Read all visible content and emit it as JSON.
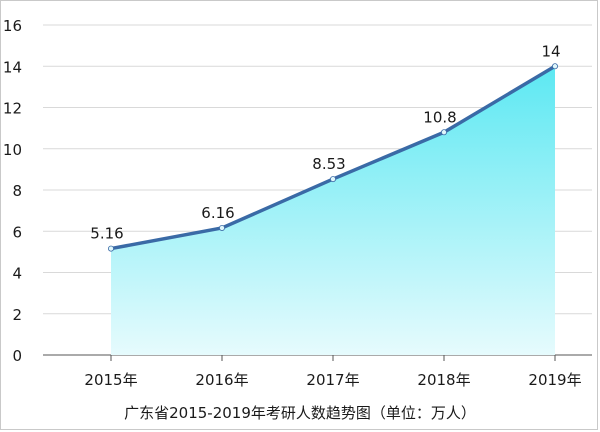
{
  "chart_data": {
    "type": "area",
    "title": "广东省2015-2019年考研人数趋势图（单位：万人）",
    "categories": [
      "2015年",
      "2016年",
      "2017年",
      "2018年",
      "2019年"
    ],
    "series": [
      {
        "values": [
          5.16,
          6.16,
          8.53,
          10.8,
          14
        ]
      }
    ],
    "data_labels": [
      "5.16",
      "6.16",
      "8.53",
      "10.8",
      "14"
    ],
    "ylim": [
      0,
      16
    ],
    "yticks": [
      0,
      2,
      4,
      6,
      8,
      10,
      12,
      14,
      16
    ],
    "grid": true,
    "colors": {
      "line": "#3a6aa6",
      "fill_top": "#5ce8f2",
      "fill_bottom": "#e6fbfd",
      "grid": "#d9d9d9",
      "point": "#dff6fb"
    }
  }
}
